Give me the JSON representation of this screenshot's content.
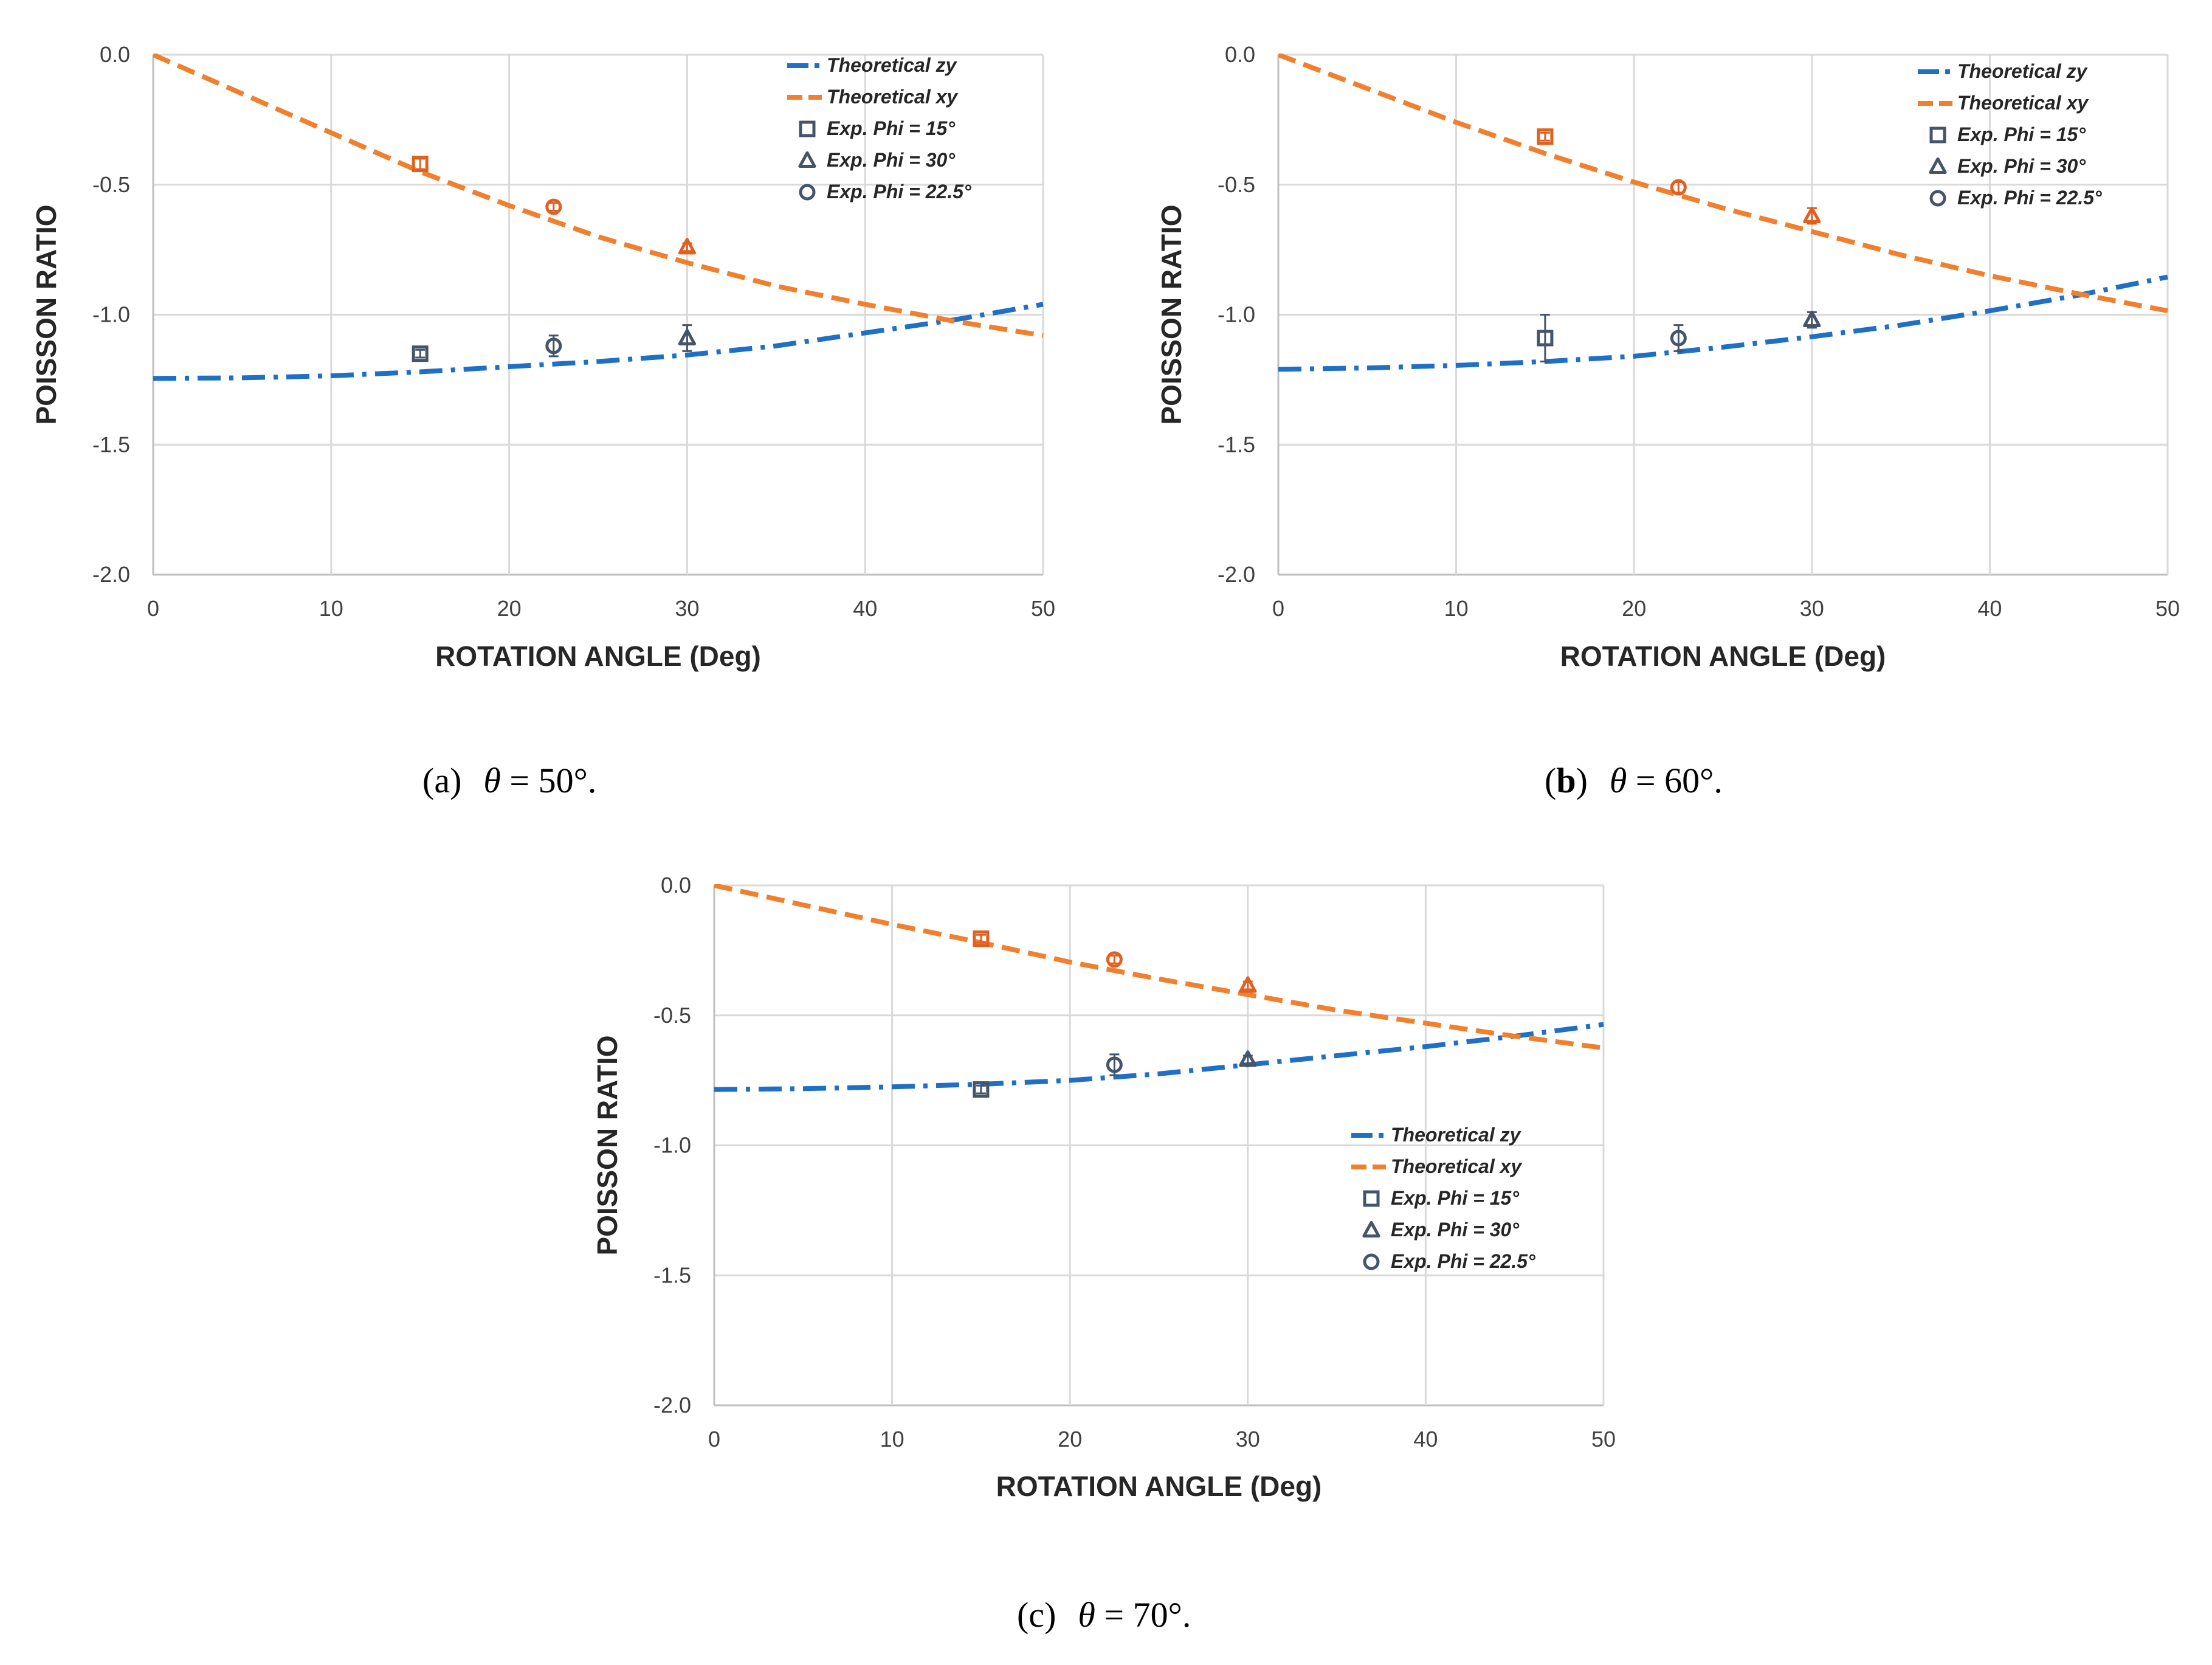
{
  "figure": {
    "panels": [
      {
        "caption": {
          "open": "(",
          "letter": "a",
          "close": ")",
          "symbol": "θ",
          "equals": " = ",
          "value": "50°.",
          "letter_bold": false
        }
      },
      {
        "caption": {
          "open": "(",
          "letter": "b",
          "close": ")",
          "symbol": "θ",
          "equals": " = ",
          "value": "60°.",
          "letter_bold": true
        }
      },
      {
        "caption": {
          "open": "(",
          "letter": "c",
          "close": ")",
          "symbol": "θ",
          "equals": " = ",
          "value": "70°.",
          "letter_bold": false
        }
      }
    ]
  },
  "colors": {
    "zy": "#1f6fc5",
    "xy": "#f07f2e",
    "exp_marker": "#44546a",
    "exp_marker_xy": "#e0611f",
    "grid": "#d9d9d9",
    "axis": "#bfbfbf"
  },
  "chart_data": [
    {
      "type": "line",
      "title": "(a) θ = 50°.",
      "xlabel": "ROTATION ANGLE (Deg)",
      "ylabel": "POISSON RATIO",
      "xlim": [
        0,
        50
      ],
      "ylim": [
        -2.0,
        0.0
      ],
      "xticks": [
        "0",
        "10",
        "20",
        "30",
        "40",
        "50"
      ],
      "yticks": [
        "0.0",
        "-0.5",
        "-1.0",
        "-1.5",
        "-2.0"
      ],
      "grid": true,
      "legend_position": "top-right",
      "legend": [
        "Theoretical zy",
        "Theoretical xy",
        "Exp. Phi = 15°",
        "Exp. Phi = 30°",
        "Exp. Phi = 22.5°"
      ],
      "series": [
        {
          "name": "Theoretical zy",
          "kind": "line",
          "style": "dashdot",
          "color": "zy",
          "x": [
            0,
            5,
            10,
            15,
            20,
            25,
            30,
            35,
            40,
            45,
            50
          ],
          "y": [
            -1.245,
            -1.243,
            -1.235,
            -1.22,
            -1.2,
            -1.18,
            -1.155,
            -1.12,
            -1.07,
            -1.02,
            -0.96
          ]
        },
        {
          "name": "Theoretical xy",
          "kind": "line",
          "style": "dash",
          "color": "xy",
          "x": [
            0,
            5,
            10,
            15,
            20,
            25,
            30,
            35,
            40,
            45,
            50
          ],
          "y": [
            0.0,
            -0.15,
            -0.3,
            -0.45,
            -0.58,
            -0.7,
            -0.8,
            -0.89,
            -0.96,
            -1.025,
            -1.08
          ]
        },
        {
          "name": "Exp. Phi = 15°",
          "kind": "marker",
          "marker": "square",
          "points": [
            {
              "x": 15,
              "y": -1.15,
              "err": 0.015,
              "group": "zy"
            },
            {
              "x": 15,
              "y": -0.42,
              "err": 0.02,
              "group": "xy"
            }
          ]
        },
        {
          "name": "Exp. Phi = 30°",
          "kind": "marker",
          "marker": "triangle",
          "points": [
            {
              "x": 30,
              "y": -1.09,
              "err": 0.05,
              "group": "zy"
            },
            {
              "x": 30,
              "y": -0.74,
              "err": 0.015,
              "group": "xy"
            }
          ]
        },
        {
          "name": "Exp. Phi = 22.5°",
          "kind": "marker",
          "marker": "circle",
          "points": [
            {
              "x": 22.5,
              "y": -1.12,
              "err": 0.04,
              "group": "zy"
            },
            {
              "x": 22.5,
              "y": -0.585,
              "err": 0.015,
              "group": "xy"
            }
          ]
        }
      ]
    },
    {
      "type": "line",
      "title": "(b) θ = 60°.",
      "xlabel": "ROTATION ANGLE (Deg)",
      "ylabel": "POISSON RATIO",
      "xlim": [
        0,
        50
      ],
      "ylim": [
        -2.0,
        0.0
      ],
      "xticks": [
        "0",
        "10",
        "20",
        "30",
        "40",
        "50"
      ],
      "yticks": [
        "0.0",
        "-0.5",
        "-1.0",
        "-1.5",
        "-2.0"
      ],
      "grid": true,
      "legend_position": "top-right",
      "legend": [
        "Theoretical zy",
        "Theoretical xy",
        "Exp. Phi = 15°",
        "Exp. Phi = 30°",
        "Exp. Phi = 22.5°"
      ],
      "series": [
        {
          "name": "Theoretical zy",
          "kind": "line",
          "style": "dashdot",
          "color": "zy",
          "x": [
            0,
            5,
            10,
            15,
            20,
            25,
            30,
            35,
            40,
            45,
            50
          ],
          "y": [
            -1.21,
            -1.205,
            -1.195,
            -1.18,
            -1.16,
            -1.125,
            -1.085,
            -1.04,
            -0.985,
            -0.925,
            -0.855
          ]
        },
        {
          "name": "Theoretical xy",
          "kind": "line",
          "style": "dash",
          "color": "xy",
          "x": [
            0,
            5,
            10,
            15,
            20,
            25,
            30,
            35,
            40,
            45,
            50
          ],
          "y": [
            0.0,
            -0.13,
            -0.26,
            -0.38,
            -0.49,
            -0.59,
            -0.68,
            -0.77,
            -0.85,
            -0.92,
            -0.985
          ]
        },
        {
          "name": "Exp. Phi = 15°",
          "kind": "marker",
          "marker": "square",
          "points": [
            {
              "x": 15,
              "y": -1.09,
              "err": 0.09,
              "group": "zy"
            },
            {
              "x": 15,
              "y": -0.315,
              "err": 0.015,
              "group": "xy"
            }
          ]
        },
        {
          "name": "Exp. Phi = 30°",
          "kind": "marker",
          "marker": "triangle",
          "points": [
            {
              "x": 30,
              "y": -1.02,
              "err": 0.03,
              "group": "zy"
            },
            {
              "x": 30,
              "y": -0.62,
              "err": 0.03,
              "group": "xy"
            }
          ]
        },
        {
          "name": "Exp. Phi = 22.5°",
          "kind": "marker",
          "marker": "circle",
          "points": [
            {
              "x": 22.5,
              "y": -1.09,
              "err": 0.05,
              "group": "zy"
            },
            {
              "x": 22.5,
              "y": -0.51,
              "err": 0.02,
              "group": "xy"
            }
          ]
        }
      ]
    },
    {
      "type": "line",
      "title": "(c) θ = 70°.",
      "xlabel": "ROTATION ANGLE (Deg)",
      "ylabel": "POISSON RATIO",
      "xlim": [
        0,
        50
      ],
      "ylim": [
        -2.0,
        0.0
      ],
      "xticks": [
        "0",
        "10",
        "20",
        "30",
        "40",
        "50"
      ],
      "yticks": [
        "0.0",
        "-0.5",
        "-1.0",
        "-1.5",
        "-2.0"
      ],
      "grid": true,
      "legend_position": "middle-right",
      "legend": [
        "Theoretical zy",
        "Theoretical xy",
        "Exp. Phi = 15°",
        "Exp. Phi = 30°",
        "Exp. Phi = 22.5°"
      ],
      "series": [
        {
          "name": "Theoretical zy",
          "kind": "line",
          "style": "dashdot",
          "color": "zy",
          "x": [
            0,
            5,
            10,
            15,
            20,
            25,
            30,
            35,
            40,
            45,
            50
          ],
          "y": [
            -0.785,
            -0.782,
            -0.775,
            -0.765,
            -0.75,
            -0.725,
            -0.69,
            -0.655,
            -0.62,
            -0.58,
            -0.535
          ]
        },
        {
          "name": "Theoretical xy",
          "kind": "line",
          "style": "dash",
          "color": "xy",
          "x": [
            0,
            5,
            10,
            15,
            20,
            25,
            30,
            35,
            40,
            45,
            50
          ],
          "y": [
            0.0,
            -0.075,
            -0.15,
            -0.22,
            -0.295,
            -0.36,
            -0.42,
            -0.48,
            -0.53,
            -0.58,
            -0.625
          ]
        },
        {
          "name": "Exp. Phi = 15°",
          "kind": "marker",
          "marker": "square",
          "points": [
            {
              "x": 15,
              "y": -0.785,
              "err": 0.015,
              "group": "zy"
            },
            {
              "x": 15,
              "y": -0.205,
              "err": 0.015,
              "group": "xy"
            }
          ]
        },
        {
          "name": "Exp. Phi = 30°",
          "kind": "marker",
          "marker": "triangle",
          "points": [
            {
              "x": 30,
              "y": -0.67,
              "err": 0.015,
              "group": "zy"
            },
            {
              "x": 30,
              "y": -0.385,
              "err": 0.015,
              "group": "xy"
            }
          ]
        },
        {
          "name": "Exp. Phi = 22.5°",
          "kind": "marker",
          "marker": "circle",
          "points": [
            {
              "x": 22.5,
              "y": -0.69,
              "err": 0.04,
              "group": "zy"
            },
            {
              "x": 22.5,
              "y": -0.285,
              "err": 0.015,
              "group": "xy"
            }
          ]
        }
      ]
    }
  ]
}
